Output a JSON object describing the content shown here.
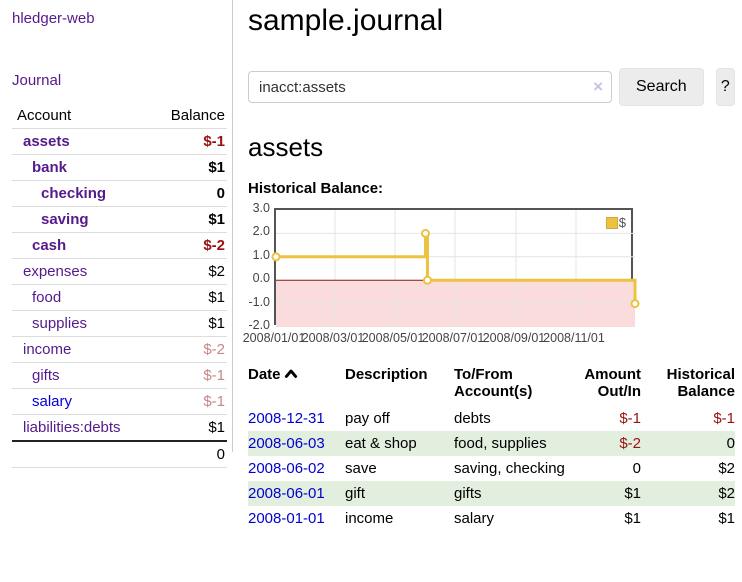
{
  "brand": "hledger-web",
  "nav": {
    "journal_label": "Journal"
  },
  "sidebar": {
    "header": {
      "account": "Account",
      "balance": "Balance"
    },
    "accounts": [
      {
        "name": "assets",
        "level": 1,
        "bold": true,
        "balance": "$-1",
        "balance_style": "neg"
      },
      {
        "name": "bank",
        "level": 2,
        "bold": true,
        "balance": "$1",
        "balance_style": ""
      },
      {
        "name": "checking",
        "level": 3,
        "bold": true,
        "balance": "0",
        "balance_style": ""
      },
      {
        "name": "saving",
        "level": 3,
        "bold": true,
        "balance": "$1",
        "balance_style": ""
      },
      {
        "name": "cash",
        "level": 2,
        "bold": true,
        "balance": "$-2",
        "balance_style": "neg"
      },
      {
        "name": "expenses",
        "level": 1,
        "bold": false,
        "balance": "$2",
        "balance_style": ""
      },
      {
        "name": "food",
        "level": 2,
        "bold": false,
        "balance": "$1",
        "balance_style": ""
      },
      {
        "name": "supplies",
        "level": 2,
        "bold": false,
        "balance": "$1",
        "balance_style": ""
      },
      {
        "name": "income",
        "level": 1,
        "bold": false,
        "balance": "$-2",
        "balance_style": "negmuted"
      },
      {
        "name": "gifts",
        "level": 2,
        "bold": false,
        "balance": "$-1",
        "balance_style": "negmuted"
      },
      {
        "name": "salary",
        "level": 2,
        "bold": false,
        "balance": "$-1",
        "balance_style": "negmuted",
        "link_style": "blue"
      },
      {
        "name": "liabilities:debts",
        "level": 1,
        "bold": false,
        "balance": "$1",
        "balance_style": ""
      }
    ],
    "total": "0"
  },
  "header": {
    "title": "sample.journal"
  },
  "search": {
    "value": "inacct:assets",
    "clear_icon": "×",
    "button_label": "Search",
    "help_label": "?"
  },
  "account_page": {
    "title": "assets",
    "chart_label": "Historical Balance:"
  },
  "chart_data": {
    "type": "line",
    "title": "Historical Balance",
    "legend": [
      {
        "label": "$",
        "color": "#edc240"
      }
    ],
    "x_range": [
      "2008-01-01",
      "2008-12-31"
    ],
    "y_range": [
      -2,
      3
    ],
    "y_ticks": [
      "3.0",
      "2.0",
      "1.0",
      "0.0",
      "-1.0",
      "-2.0"
    ],
    "x_ticks": [
      "2008/01/01",
      "2008/03/01",
      "2008/05/01",
      "2008/07/01",
      "2008/09/01",
      "2008/11/01"
    ],
    "x_tick_dates": [
      "2008-01-01",
      "2008-03-01",
      "2008-05-01",
      "2008-07-01",
      "2008-09-01",
      "2008-11-01"
    ],
    "series": [
      {
        "name": "$",
        "color": "#edc240",
        "step": true,
        "points": [
          [
            "2008-01-01",
            1
          ],
          [
            "2008-06-01",
            2
          ],
          [
            "2008-06-03",
            0
          ],
          [
            "2008-12-31",
            -1
          ]
        ]
      }
    ],
    "negative_fill": "#fbdcdc",
    "zero_line_color": "#8b1a1a",
    "grid_color": "#e4e4e4",
    "grid": true,
    "legend_position": "top-right"
  },
  "register": {
    "columns": {
      "date": "Date",
      "description": "Description",
      "accounts": "To/From Account(s)",
      "amount": "Amount Out/In",
      "balance": "Historical Balance"
    },
    "rows": [
      {
        "date": "2008-12-31",
        "description": "pay off",
        "accounts": "debts",
        "amount": "$-1",
        "amount_style": "neg",
        "balance": "$-1",
        "balance_style": "neg"
      },
      {
        "date": "2008-06-03",
        "description": "eat & shop",
        "accounts": "food, supplies",
        "amount": "$-2",
        "amount_style": "neg",
        "balance": "0",
        "balance_style": ""
      },
      {
        "date": "2008-06-02",
        "description": "save",
        "accounts": "saving, checking",
        "amount": "0",
        "amount_style": "",
        "balance": "$2",
        "balance_style": ""
      },
      {
        "date": "2008-06-01",
        "description": "gift",
        "accounts": "gifts",
        "amount": "$1",
        "amount_style": "",
        "balance": "$2",
        "balance_style": ""
      },
      {
        "date": "2008-01-01",
        "description": "income",
        "accounts": "salary",
        "amount": "$1",
        "amount_style": "",
        "balance": "$1",
        "balance_style": ""
      }
    ]
  },
  "colors": {
    "link_purple": "#551a8b",
    "link_blue": "#0000dd",
    "negative_red": "#991111",
    "negative_muted": "#c58787",
    "row_green": "#e2eede",
    "chart_gold": "#edc240",
    "chart_negative_area": "#fbdcdc"
  }
}
